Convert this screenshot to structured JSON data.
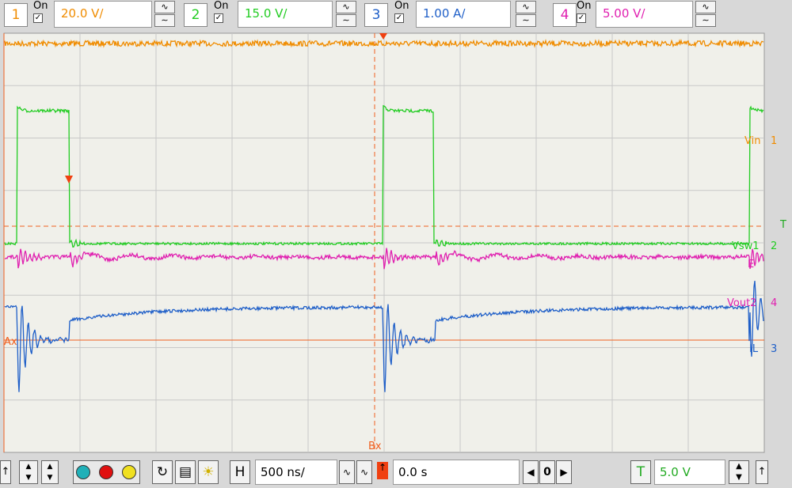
{
  "top_bar": {
    "channels": [
      {
        "number": "1",
        "state": "On",
        "scale": "20.0 V/"
      },
      {
        "number": "2",
        "state": "On",
        "scale": "15.0 V/"
      },
      {
        "number": "3",
        "state": "On",
        "scale": "1.00 A/"
      },
      {
        "number": "4",
        "state": "On",
        "scale": "5.00 V/"
      }
    ]
  },
  "plot": {
    "labels": {
      "vin": "Vin",
      "vin_num": "1",
      "trigger": "T",
      "vsw": "Vsw1",
      "vsw_num": "2",
      "e": "E",
      "vout": "Vout2",
      "vout_num": "4",
      "il": "IL",
      "il_num": "3",
      "ax": "Ax",
      "bx": "Bx"
    }
  },
  "bottom_bar": {
    "h": "H",
    "timebase": "500 ns/",
    "delay": "0.0 s",
    "nav": "0",
    "t": "T",
    "level": "5.0 V"
  }
}
